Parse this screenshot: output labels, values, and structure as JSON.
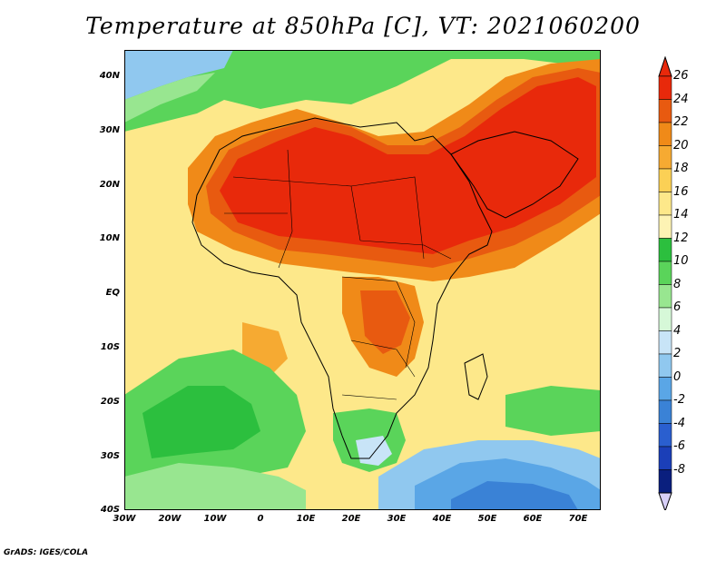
{
  "title": "Temperature at 850hPa [C], VT: 2021060200",
  "credit": "GrADS: IGES/COLA",
  "chart_data": {
    "type": "heatmap",
    "variable": "Temperature at 850hPa",
    "units": "C",
    "valid_time": "2021060200",
    "lon_range": [
      -30,
      75
    ],
    "lat_range": [
      -40,
      45
    ],
    "lon_ticks": [
      "30W",
      "20W",
      "10W",
      "0",
      "10E",
      "20E",
      "30E",
      "40E",
      "50E",
      "60E",
      "70E"
    ],
    "lat_ticks": [
      "40N",
      "30N",
      "20N",
      "10N",
      "EQ",
      "10S",
      "20S",
      "30S",
      "40S"
    ],
    "colorbar_levels": [
      "26",
      "24",
      "22",
      "20",
      "18",
      "16",
      "14",
      "12",
      "10",
      "8",
      "6",
      "4",
      "2",
      "0",
      "-2",
      "-4",
      "-6",
      "-8"
    ],
    "colorbar_colors": [
      "#e8290b",
      "#e85a10",
      "#f08a18",
      "#f6aa32",
      "#fbd055",
      "#fde88a",
      "#fdf3b4",
      "#2cbf3e",
      "#5ad45a",
      "#98e690",
      "#d6f8d8",
      "#c8e4f7",
      "#90c8ef",
      "#5aa6e6",
      "#3a82d6",
      "#2a5fcf",
      "#1b3fb8",
      "#0a1f7e"
    ]
  }
}
